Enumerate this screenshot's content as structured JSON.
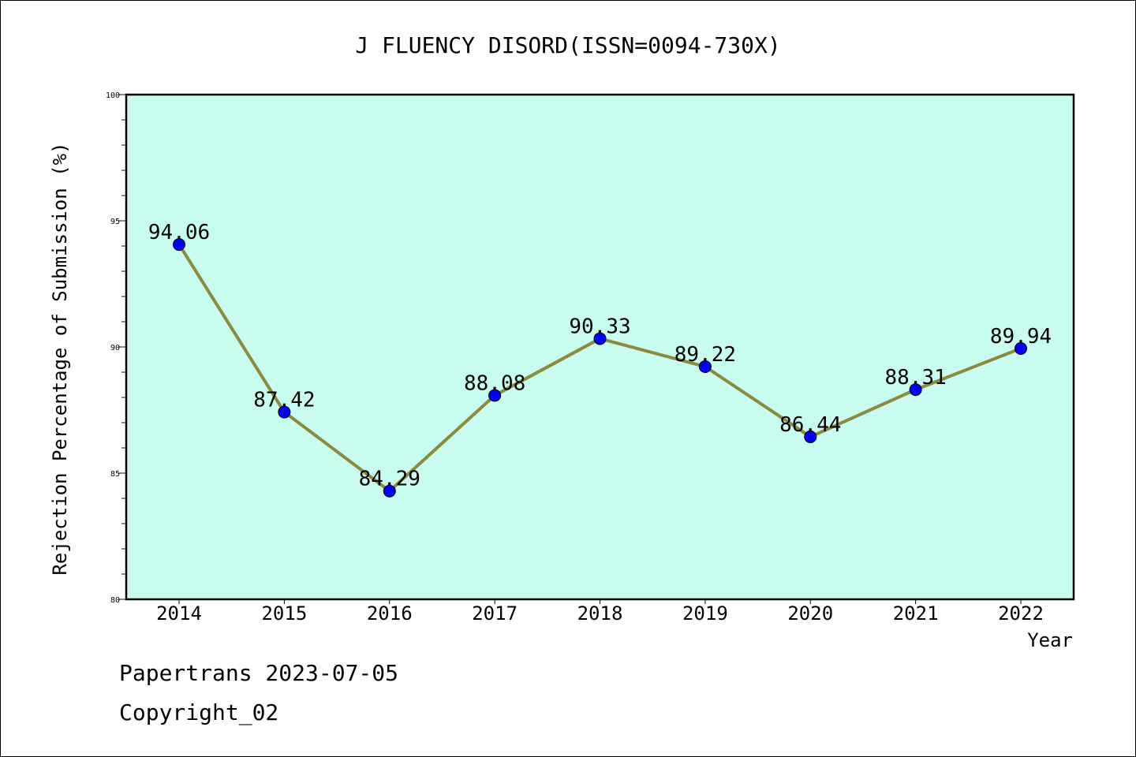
{
  "chart_data": {
    "type": "line",
    "title": "J FLUENCY DISORD(ISSN=0094-730X)",
    "xlabel": "Year",
    "ylabel": "Rejection Percentage of Submission (%)",
    "categories": [
      "2014",
      "2015",
      "2016",
      "2017",
      "2018",
      "2019",
      "2020",
      "2021",
      "2022"
    ],
    "values": [
      94.06,
      87.42,
      84.29,
      88.08,
      90.33,
      89.22,
      86.44,
      88.31,
      89.94
    ],
    "data_labels": [
      "94.06",
      "87.42",
      "84.29",
      "88.08",
      "90.33",
      "89.22",
      "86.44",
      "88.31",
      "89.94"
    ],
    "ylim": [
      80,
      100
    ],
    "yticks": [
      80,
      85,
      90,
      95,
      100
    ],
    "grid": false,
    "legend": "none",
    "colors": {
      "plot_background": "#c8fcee",
      "line": "#8c8a3c",
      "marker": "#0000ff"
    }
  },
  "footer": {
    "line1": "Papertrans 2023-07-05",
    "line2": "Copyright_02"
  }
}
